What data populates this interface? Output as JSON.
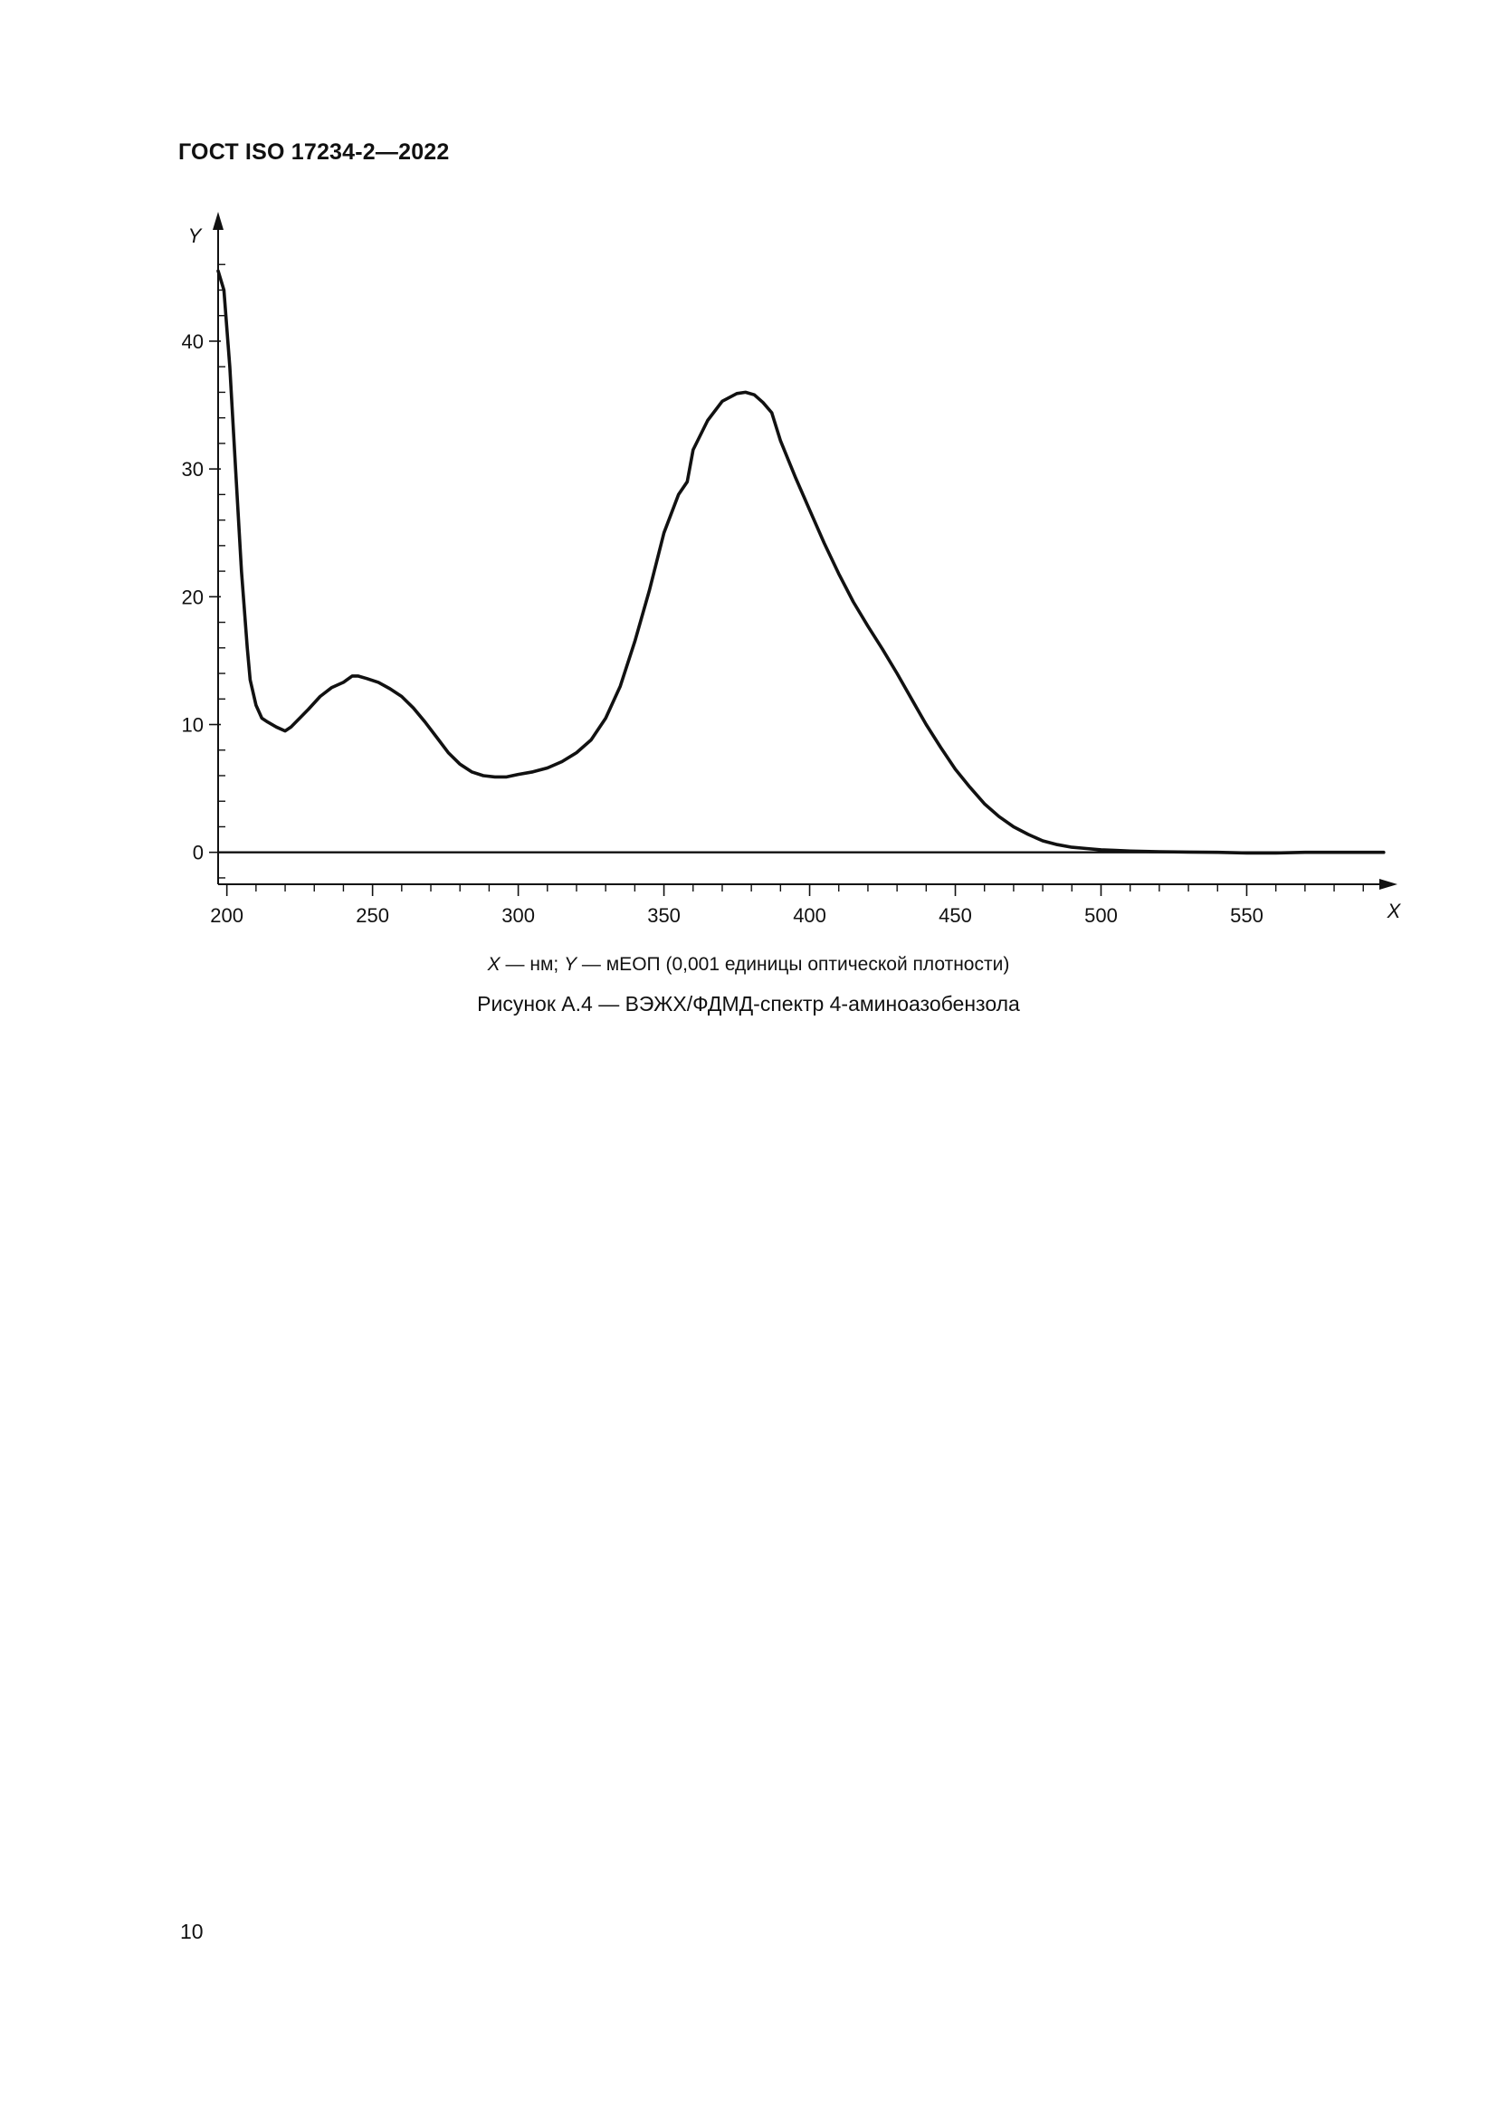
{
  "document": {
    "header": "ГОСТ ISO 17234-2—2022",
    "page_number": "10"
  },
  "figure": {
    "legend_x_symbol": "X",
    "legend_x_text": " — нм; ",
    "legend_y_symbol": "Y",
    "legend_y_text": " — мЕОП (0,001 единицы оптической плотности)",
    "caption": "Рисунок А.4 — ВЭЖХ/ФДМД-спектр 4-аминоазобензола"
  },
  "chart_data": {
    "type": "line",
    "xlabel": "X",
    "ylabel": "Y",
    "xlim": [
      197,
      598
    ],
    "ylim": [
      -2.5,
      48
    ],
    "x_ticks": [
      200,
      250,
      300,
      350,
      400,
      450,
      500,
      550
    ],
    "x_minor_step": 10,
    "y_ticks": [
      0,
      10,
      20,
      30,
      40
    ],
    "y_minor_step": 2,
    "grid": false,
    "baseline": 0,
    "line_color": "#111111",
    "series": [
      {
        "x": [
          197,
          199,
          201,
          203,
          205,
          207,
          208,
          210,
          212,
          214,
          217,
          220,
          222,
          225,
          228,
          232,
          236,
          240,
          243,
          245,
          248,
          252,
          256,
          260,
          264,
          268,
          272,
          276,
          280,
          284,
          288,
          292,
          296,
          300,
          305,
          310,
          315,
          320,
          325,
          330,
          335,
          340,
          345,
          350,
          355,
          358,
          360,
          365,
          370,
          375,
          378,
          381,
          384,
          387,
          390,
          395,
          400,
          405,
          410,
          415,
          420,
          425,
          430,
          435,
          440,
          445,
          450,
          455,
          460,
          465,
          470,
          475,
          480,
          485,
          490,
          495,
          500,
          505,
          510,
          520,
          530,
          540,
          550,
          560,
          570,
          580,
          590,
          597
        ],
        "y": [
          45.5,
          44,
          38,
          30,
          22,
          16,
          13.5,
          11.5,
          10.5,
          10.2,
          9.8,
          9.5,
          9.8,
          10.5,
          11.2,
          12.2,
          12.9,
          13.3,
          13.8,
          13.8,
          13.6,
          13.3,
          12.8,
          12.2,
          11.3,
          10.2,
          9.0,
          7.8,
          6.9,
          6.3,
          6.0,
          5.9,
          5.9,
          6.1,
          6.3,
          6.6,
          7.1,
          7.8,
          8.8,
          10.5,
          13.0,
          16.5,
          20.5,
          25.0,
          28.0,
          29.0,
          31.5,
          33.8,
          35.3,
          35.9,
          36.0,
          35.8,
          35.2,
          34.4,
          32.2,
          29.4,
          26.8,
          24.2,
          21.8,
          19.6,
          17.7,
          15.9,
          14.0,
          12.0,
          10.0,
          8.2,
          6.5,
          5.1,
          3.8,
          2.8,
          2.0,
          1.4,
          0.9,
          0.6,
          0.4,
          0.3,
          0.2,
          0.15,
          0.1,
          0.05,
          0.02,
          0.0,
          -0.05,
          -0.05,
          0.0,
          0.0,
          0.0,
          0.0
        ]
      }
    ]
  }
}
